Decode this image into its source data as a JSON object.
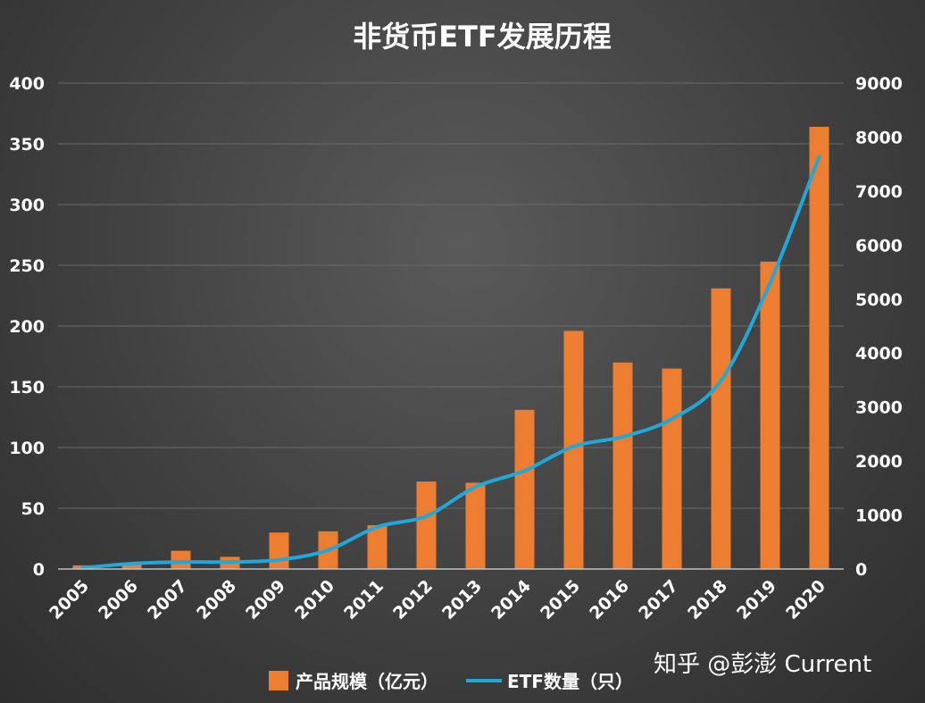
{
  "chart_data": {
    "type": "bar+line",
    "title": "非货币ETF发展历程",
    "categories": [
      "2005",
      "2006",
      "2007",
      "2008",
      "2009",
      "2010",
      "2011",
      "2012",
      "2013",
      "2014",
      "2015",
      "2016",
      "2017",
      "2018",
      "2019",
      "2020"
    ],
    "series": [
      {
        "name": "产品规模（亿元）",
        "type": "bar",
        "axis": "left",
        "color": "#ed7d31",
        "values": [
          3,
          4,
          15,
          10,
          30,
          31,
          36,
          72,
          71,
          131,
          196,
          170,
          165,
          231,
          253,
          364
        ]
      },
      {
        "name": "ETF数量（只）",
        "type": "line",
        "axis": "right",
        "color": "#1fa8d8",
        "values": [
          20,
          100,
          130,
          130,
          170,
          350,
          780,
          980,
          1520,
          1820,
          2270,
          2450,
          2780,
          3490,
          5300,
          7640
        ]
      }
    ],
    "y_left": {
      "range": [
        0,
        400
      ],
      "ticks": [
        "0",
        "50",
        "100",
        "150",
        "200",
        "250",
        "300",
        "350",
        "400"
      ]
    },
    "y_right": {
      "range": [
        0,
        9000
      ],
      "ticks": [
        "0",
        "1000",
        "2000",
        "3000",
        "4000",
        "5000",
        "6000",
        "7000",
        "8000",
        "9000"
      ]
    },
    "grid": true,
    "legend_position": "bottom"
  },
  "watermark": "知乎 @彭澎 Current"
}
